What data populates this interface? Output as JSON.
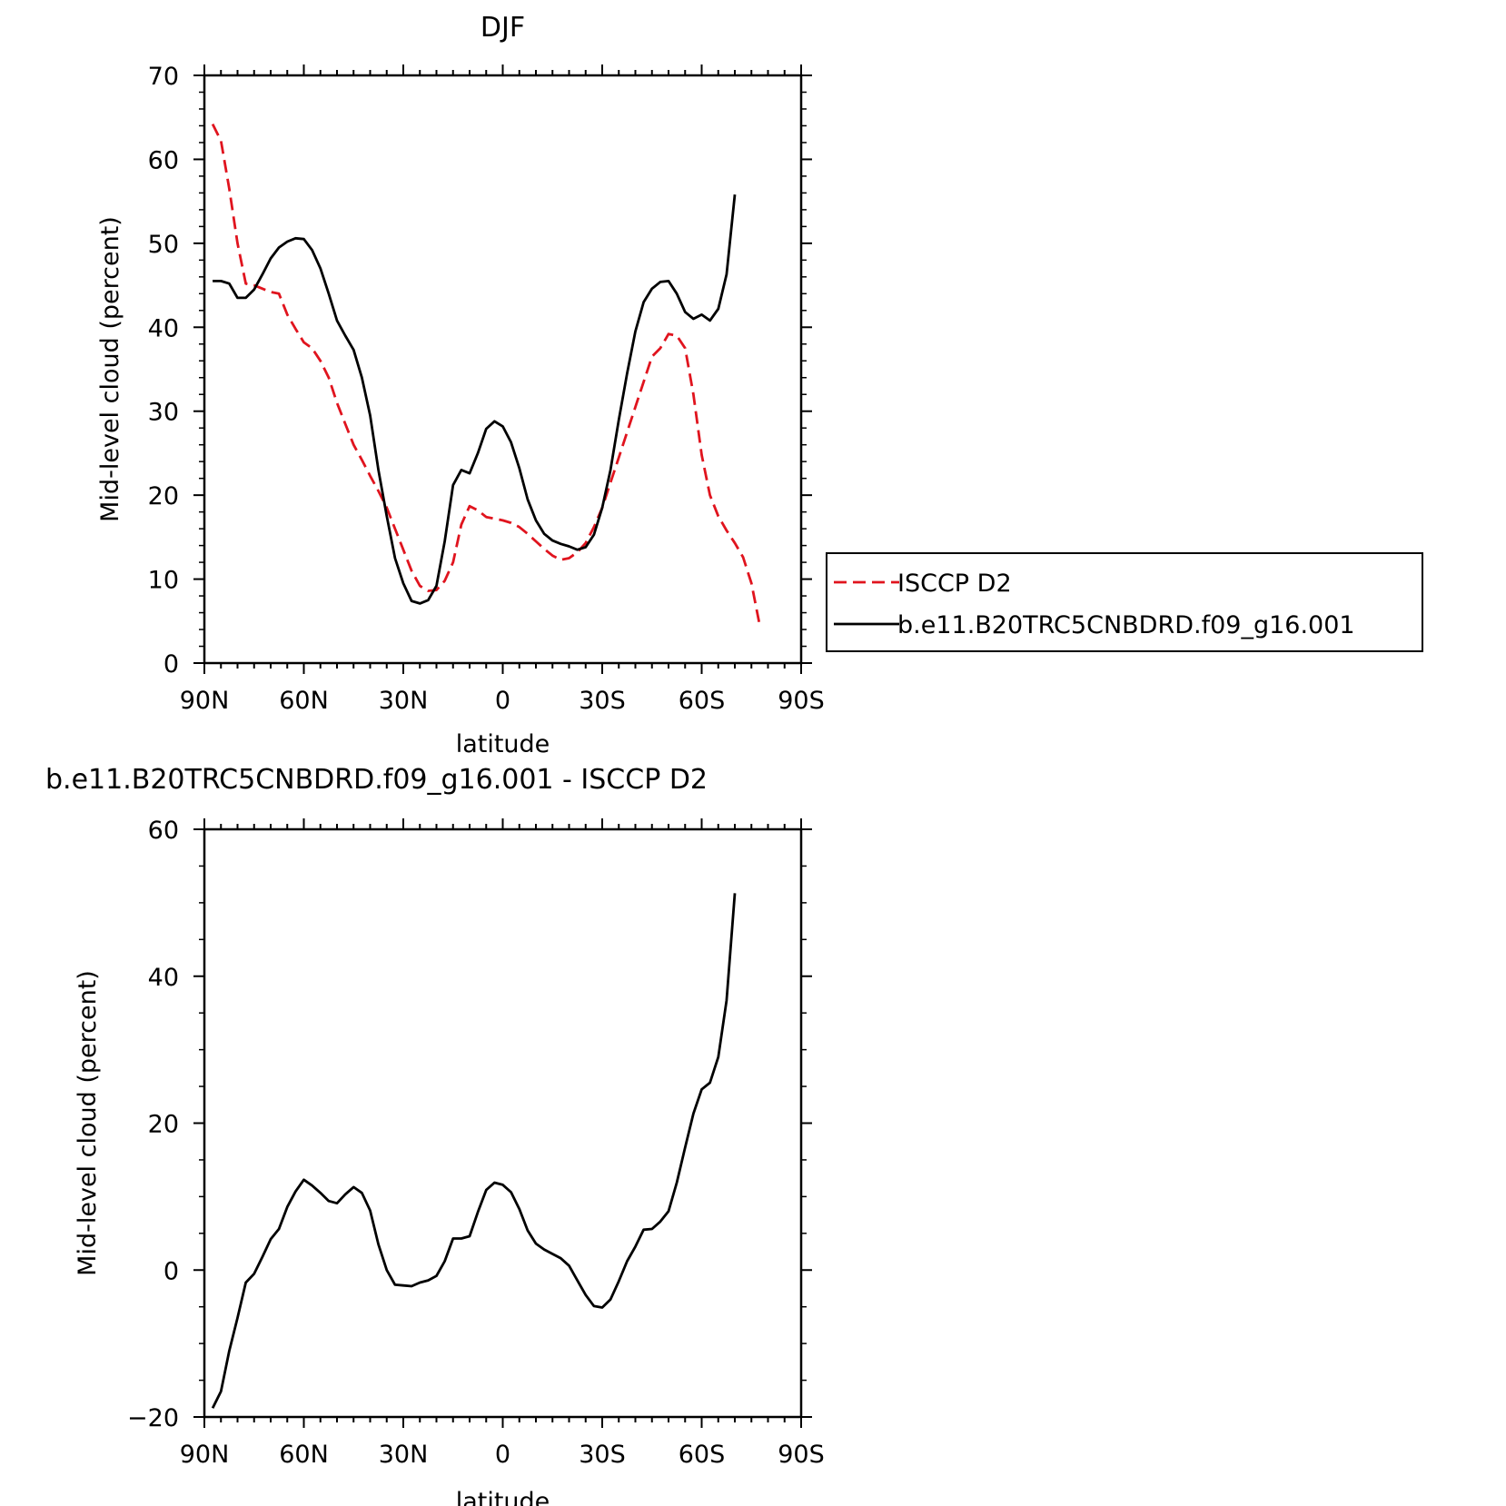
{
  "chart_data": [
    {
      "type": "line",
      "title": "DJF",
      "xlabel": "latitude",
      "ylabel": "Mid-level cloud (percent)",
      "xlim": [
        90,
        -90
      ],
      "ylim": [
        0,
        70
      ],
      "xticks": [
        {
          "v": 90,
          "label": "90N"
        },
        {
          "v": 60,
          "label": "60N"
        },
        {
          "v": 30,
          "label": "30N"
        },
        {
          "v": 0,
          "label": "0"
        },
        {
          "v": -30,
          "label": "30S"
        },
        {
          "v": -60,
          "label": "60S"
        },
        {
          "v": -90,
          "label": "90S"
        }
      ],
      "yticks": [
        0,
        10,
        20,
        30,
        40,
        50,
        60,
        70
      ],
      "legend_position": "right",
      "series": [
        {
          "name": "ISCCP D2",
          "color": "#e0141e",
          "dash": "dashed",
          "points": [
            [
              87.5,
              64.2
            ],
            [
              85,
              62.2
            ],
            [
              82.5,
              56.5
            ],
            [
              80,
              50
            ],
            [
              77.5,
              45.2
            ],
            [
              75,
              45
            ],
            [
              72.5,
              44.6
            ],
            [
              70,
              44.2
            ],
            [
              67.5,
              44
            ],
            [
              65,
              41.5
            ],
            [
              62.5,
              39.8
            ],
            [
              60,
              38.2
            ],
            [
              57.5,
              37.5
            ],
            [
              55,
              36
            ],
            [
              52.5,
              34
            ],
            [
              50,
              31
            ],
            [
              47.5,
              28.5
            ],
            [
              45,
              26
            ],
            [
              42.5,
              24.2
            ],
            [
              40,
              22.3
            ],
            [
              37.5,
              20.5
            ],
            [
              35,
              18.5
            ],
            [
              32.5,
              16
            ],
            [
              30,
              13.5
            ],
            [
              27.5,
              11
            ],
            [
              25,
              9.2
            ],
            [
              22.5,
              8.6
            ],
            [
              20,
              8.7
            ],
            [
              17.5,
              9.8
            ],
            [
              15,
              12
            ],
            [
              12.5,
              16.5
            ],
            [
              10,
              18.7
            ],
            [
              7.5,
              18.2
            ],
            [
              5,
              17.4
            ],
            [
              2.5,
              17.2
            ],
            [
              0,
              17
            ],
            [
              -2.5,
              16.7
            ],
            [
              -5,
              16.2
            ],
            [
              -7.5,
              15.4
            ],
            [
              -10,
              14.5
            ],
            [
              -12.5,
              13.6
            ],
            [
              -15,
              12.8
            ],
            [
              -17.5,
              12.3
            ],
            [
              -20,
              12.5
            ],
            [
              -22.5,
              13.2
            ],
            [
              -25,
              14.3
            ],
            [
              -27.5,
              16.2
            ],
            [
              -30,
              18.5
            ],
            [
              -32.5,
              21.5
            ],
            [
              -35,
              24.5
            ],
            [
              -37.5,
              27.5
            ],
            [
              -40,
              30.5
            ],
            [
              -42.5,
              33.5
            ],
            [
              -45,
              36.5
            ],
            [
              -47.5,
              37.5
            ],
            [
              -50,
              39.2
            ],
            [
              -52.5,
              39
            ],
            [
              -55,
              37.5
            ],
            [
              -57.5,
              32
            ],
            [
              -60,
              24.8
            ],
            [
              -62.5,
              20
            ],
            [
              -65,
              17.5
            ],
            [
              -67.5,
              15.8
            ],
            [
              -70,
              14.3
            ],
            [
              -72.5,
              12.6
            ],
            [
              -75,
              9.5
            ],
            [
              -77.5,
              4.5
            ]
          ]
        },
        {
          "name": "b.e11.B20TRC5CNBDRD.f09_g16.001",
          "color": "#000000",
          "dash": "solid",
          "points": [
            [
              87.5,
              45.5
            ],
            [
              85,
              45.5
            ],
            [
              82.5,
              45.2
            ],
            [
              80,
              43.5
            ],
            [
              77.5,
              43.5
            ],
            [
              75,
              44.5
            ],
            [
              72.5,
              46.3
            ],
            [
              70,
              48.2
            ],
            [
              67.5,
              49.5
            ],
            [
              65,
              50.2
            ],
            [
              62.5,
              50.6
            ],
            [
              60,
              50.5
            ],
            [
              57.5,
              49.2
            ],
            [
              55,
              47
            ],
            [
              52.5,
              44
            ],
            [
              50,
              40.8
            ],
            [
              47.5,
              39
            ],
            [
              45,
              37.3
            ],
            [
              42.5,
              34
            ],
            [
              40,
              29.5
            ],
            [
              37.5,
              23
            ],
            [
              35,
              17.5
            ],
            [
              32.5,
              12.5
            ],
            [
              30,
              9.5
            ],
            [
              27.5,
              7.4
            ],
            [
              25,
              7.1
            ],
            [
              22.5,
              7.5
            ],
            [
              20,
              9.2
            ],
            [
              17.5,
              14.5
            ],
            [
              15,
              21.2
            ],
            [
              12.5,
              23
            ],
            [
              10,
              22.6
            ],
            [
              7.5,
              25
            ],
            [
              5,
              27.9
            ],
            [
              2.5,
              28.8
            ],
            [
              0,
              28.2
            ],
            [
              -2.5,
              26.3
            ],
            [
              -5,
              23.2
            ],
            [
              -7.5,
              19.5
            ],
            [
              -10,
              17
            ],
            [
              -12.5,
              15.4
            ],
            [
              -15,
              14.6
            ],
            [
              -17.5,
              14.2
            ],
            [
              -20,
              13.9
            ],
            [
              -22.5,
              13.5
            ],
            [
              -25,
              13.8
            ],
            [
              -27.5,
              15.3
            ],
            [
              -30,
              18.5
            ],
            [
              -32.5,
              23
            ],
            [
              -35,
              29
            ],
            [
              -37.5,
              34.5
            ],
            [
              -40,
              39.5
            ],
            [
              -42.5,
              43
            ],
            [
              -45,
              44.6
            ],
            [
              -47.5,
              45.4
            ],
            [
              -50,
              45.5
            ],
            [
              -52.5,
              44
            ],
            [
              -55,
              41.8
            ],
            [
              -57.5,
              41
            ],
            [
              -60,
              41.5
            ],
            [
              -62.5,
              40.8
            ],
            [
              -65,
              42.2
            ],
            [
              -67.5,
              46.3
            ],
            [
              -70,
              55.8
            ]
          ]
        }
      ]
    },
    {
      "type": "line",
      "title": "b.e11.B20TRC5CNBDRD.f09_g16.001 - ISCCP D2",
      "xlabel": "latitude",
      "ylabel": "Mid-level cloud (percent)",
      "xlim": [
        90,
        -90
      ],
      "ylim": [
        -20,
        60
      ],
      "xticks": [
        {
          "v": 90,
          "label": "90N"
        },
        {
          "v": 60,
          "label": "60N"
        },
        {
          "v": 30,
          "label": "30N"
        },
        {
          "v": 0,
          "label": "0"
        },
        {
          "v": -30,
          "label": "30S"
        },
        {
          "v": -60,
          "label": "60S"
        },
        {
          "v": -90,
          "label": "90S"
        }
      ],
      "yticks": [
        -20,
        0,
        20,
        40,
        60
      ],
      "series": [
        {
          "color": "#000000",
          "dash": "solid",
          "points": [
            [
              87.5,
              -18.8
            ],
            [
              85,
              -16.5
            ],
            [
              82.5,
              -11
            ],
            [
              80,
              -6.5
            ],
            [
              77.5,
              -1.7
            ],
            [
              75,
              -0.5
            ],
            [
              72.5,
              1.8
            ],
            [
              70,
              4.2
            ],
            [
              67.5,
              5.6
            ],
            [
              65,
              8.6
            ],
            [
              62.5,
              10.7
            ],
            [
              60,
              12.3
            ],
            [
              57.5,
              11.5
            ],
            [
              55,
              10.5
            ],
            [
              52.5,
              9.4
            ],
            [
              50,
              9.1
            ],
            [
              47.5,
              10.3
            ],
            [
              45,
              11.3
            ],
            [
              42.5,
              10.5
            ],
            [
              40,
              8.1
            ],
            [
              37.5,
              3.5
            ],
            [
              35,
              0
            ],
            [
              32.5,
              -2
            ],
            [
              30,
              -2.1
            ],
            [
              27.5,
              -2.2
            ],
            [
              25,
              -1.7
            ],
            [
              22.5,
              -1.4
            ],
            [
              20,
              -0.8
            ],
            [
              17.5,
              1.2
            ],
            [
              15,
              4.3
            ],
            [
              12.5,
              4.3
            ],
            [
              10,
              4.6
            ],
            [
              7.5,
              7.9
            ],
            [
              5,
              10.9
            ],
            [
              2.5,
              11.9
            ],
            [
              0,
              11.6
            ],
            [
              -2.5,
              10.6
            ],
            [
              -5,
              8.3
            ],
            [
              -7.5,
              5.4
            ],
            [
              -10,
              3.6
            ],
            [
              -12.5,
              2.8
            ],
            [
              -15,
              2.2
            ],
            [
              -17.5,
              1.6
            ],
            [
              -20,
              0.6
            ],
            [
              -22.5,
              -1.4
            ],
            [
              -25,
              -3.4
            ],
            [
              -27.5,
              -4.9
            ],
            [
              -30,
              -5.1
            ],
            [
              -32.5,
              -4
            ],
            [
              -35,
              -1.5
            ],
            [
              -37.5,
              1.2
            ],
            [
              -40,
              3.2
            ],
            [
              -42.5,
              5.5
            ],
            [
              -45,
              5.6
            ],
            [
              -47.5,
              6.6
            ],
            [
              -50,
              8
            ],
            [
              -52.5,
              11.9
            ],
            [
              -55,
              16.7
            ],
            [
              -57.5,
              21.3
            ],
            [
              -60,
              24.6
            ],
            [
              -62.5,
              25.5
            ],
            [
              -65,
              29
            ],
            [
              -67.5,
              36.7
            ],
            [
              -70,
              51.3
            ]
          ]
        }
      ]
    }
  ]
}
